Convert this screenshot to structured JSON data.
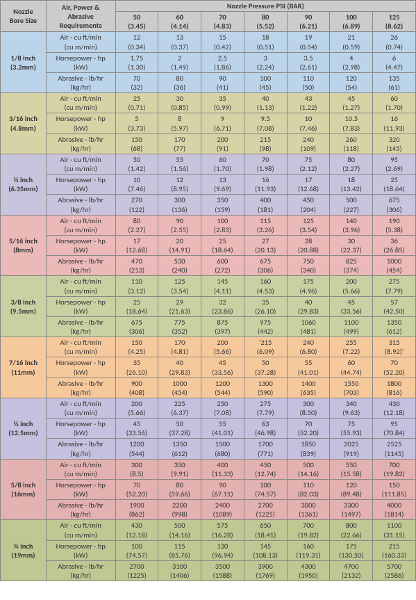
{
  "header": {
    "bore_size": "Nozzle\nBore Size",
    "requirements": "Air, Power &\nAbrasive\nRequirements",
    "pressure_title": "Nozzle Pressure PSI (BAR)",
    "pressures": [
      {
        "psi": "50",
        "bar": "(3.45)"
      },
      {
        "psi": "60",
        "bar": "(4.14)"
      },
      {
        "psi": "70",
        "bar": "(4.83)"
      },
      {
        "psi": "80",
        "bar": "(5.52)"
      },
      {
        "psi": "90",
        "bar": "(6.21)"
      },
      {
        "psi": "100",
        "bar": "(6.89)"
      },
      {
        "psi": "125",
        "bar": "(8.62)"
      }
    ]
  },
  "req_labels": {
    "air": "Air - cu ft/min\n(cu m/min)",
    "hp": "Horsepower - hp\n(kW)",
    "abr": "Abrasive - lb/hr\n(kg/hr)"
  },
  "groups": [
    {
      "bore": "1/8 inch\n(3.2mm)",
      "color": "#bcd4ea",
      "rows": {
        "air": [
          [
            "12",
            "(0.34)"
          ],
          [
            "13",
            "(0.37)"
          ],
          [
            "15",
            "(0.42)"
          ],
          [
            "18",
            "(0.51)"
          ],
          [
            "19",
            "(0.54)"
          ],
          [
            "21",
            "(0.59)"
          ],
          [
            "26",
            "(0.74)"
          ]
        ],
        "hp": [
          [
            "1.75",
            "(1.30)"
          ],
          [
            "2",
            "(1.49)"
          ],
          [
            "2.5",
            "(1.86)"
          ],
          [
            "3",
            "(2.24)"
          ],
          [
            "3.5",
            "(2.61)"
          ],
          [
            "4",
            "(2.98)"
          ],
          [
            "6",
            "(4.47)"
          ]
        ],
        "abr": [
          [
            "70",
            "(32)"
          ],
          [
            "80",
            "(36)"
          ],
          [
            "90",
            "(41)"
          ],
          [
            "100",
            "(45)"
          ],
          [
            "110",
            "(50)"
          ],
          [
            "120",
            "(54)"
          ],
          [
            "135",
            "(61)"
          ]
        ]
      }
    },
    {
      "bore": "3/16 inch\n(4.8mm)",
      "color": "#d7d3a6",
      "rows": {
        "air": [
          [
            "25",
            "(0.71)"
          ],
          [
            "30",
            "(0.85)"
          ],
          [
            "35",
            "(0.99)"
          ],
          [
            "40",
            "(1.13)"
          ],
          [
            "43",
            "(1.22)"
          ],
          [
            "45",
            "(1.27)"
          ],
          [
            "60",
            "(1.70)"
          ]
        ],
        "hp": [
          [
            "5",
            "(3.73)"
          ],
          [
            "8",
            "(5.97)"
          ],
          [
            "9",
            "(6.71)"
          ],
          [
            "9.5",
            "(7.08)"
          ],
          [
            "10",
            "(7.46)"
          ],
          [
            "10.5",
            "(7.83)"
          ],
          [
            "16",
            "(11.93)"
          ]
        ],
        "abr": [
          [
            "150",
            "(68)"
          ],
          [
            "170",
            "(77)"
          ],
          [
            "200",
            "(91)"
          ],
          [
            "215",
            "(98)"
          ],
          [
            "240",
            "(109)"
          ],
          [
            "260",
            "(118)"
          ],
          [
            "320",
            "(145)"
          ]
        ]
      }
    },
    {
      "bore": "¼ inch\n(6.35mm)",
      "color": "#c9c4dd",
      "rows": {
        "air": [
          [
            "50",
            "(1.42)"
          ],
          [
            "55",
            "(1.56)"
          ],
          [
            "60",
            "(1.70)"
          ],
          [
            "70",
            "(1.98)"
          ],
          [
            "75",
            "(2.12)"
          ],
          [
            "80",
            "(2.27)"
          ],
          [
            "95",
            "(2.69)"
          ]
        ],
        "hp": [
          [
            "10",
            "(7.46)"
          ],
          [
            "12",
            "(8.95)"
          ],
          [
            "13",
            "(9.69)"
          ],
          [
            "16",
            "(11.93)"
          ],
          [
            "17",
            "(12.68)"
          ],
          [
            "18",
            "(13.42)"
          ],
          [
            "25",
            "(18.64)"
          ]
        ],
        "abr": [
          [
            "270",
            "(122)"
          ],
          [
            "300",
            "(136)"
          ],
          [
            "350",
            "(159)"
          ],
          [
            "400",
            "(181)"
          ],
          [
            "450",
            "(204)"
          ],
          [
            "500",
            "(227)"
          ],
          [
            "675",
            "(306)"
          ]
        ]
      }
    },
    {
      "bore": "5/16 inch\n(8mm)",
      "color": "#eab9b8",
      "rows": {
        "air": [
          [
            "80",
            "(2.27)"
          ],
          [
            "90",
            "(2.55)"
          ],
          [
            "100",
            "(2.83)"
          ],
          [
            "115",
            "(3.26)"
          ],
          [
            "125",
            "(3.54)"
          ],
          [
            "140",
            "(3.96)"
          ],
          [
            "190",
            "(5.38)"
          ]
        ],
        "hp": [
          [
            "17",
            "(12.68)"
          ],
          [
            "20",
            "(14.91)"
          ],
          [
            "25",
            "(18.64)"
          ],
          [
            "27",
            "(20.13)"
          ],
          [
            "28",
            "(20.88)"
          ],
          [
            "30",
            "(22.37)"
          ],
          [
            "36",
            "(26.85)"
          ]
        ],
        "abr": [
          [
            "470",
            "(213)"
          ],
          [
            "530",
            "(240)"
          ],
          [
            "600",
            "(272)"
          ],
          [
            "675",
            "(306)"
          ],
          [
            "750",
            "(340)"
          ],
          [
            "825",
            "(374)"
          ],
          [
            "1000",
            "(454)"
          ]
        ]
      }
    },
    {
      "bore": "3/8 inch\n(9.5mm)",
      "color": "#c9d1a3",
      "rows": {
        "air": [
          [
            "110",
            "(3.12)"
          ],
          [
            "125",
            "(3.54)"
          ],
          [
            "145",
            "(4.11)"
          ],
          [
            "160",
            "(4.53)"
          ],
          [
            "175",
            "(4.96)"
          ],
          [
            "200",
            "(5.66)"
          ],
          [
            "275",
            "(7.79)"
          ]
        ],
        "hp": [
          [
            "25",
            "(18.64)"
          ],
          [
            "29",
            "(21.63)"
          ],
          [
            "32",
            "(23.86)"
          ],
          [
            "35",
            "(26.10)"
          ],
          [
            "40",
            "(29.83)"
          ],
          [
            "45",
            "(33.56)"
          ],
          [
            "57",
            "(42.50)"
          ]
        ],
        "abr": [
          [
            "675",
            "(306)"
          ],
          [
            "775",
            "(352)"
          ],
          [
            "875",
            "(397)"
          ],
          [
            "975",
            "(442)"
          ],
          [
            "1060",
            "(481)"
          ],
          [
            "1100",
            "(499)"
          ],
          [
            "1350",
            "(612)"
          ]
        ]
      }
    },
    {
      "bore": "7/16 inch\n(11mm)",
      "color": "#f6c99c",
      "rows": {
        "air": [
          [
            "150",
            "(4.25)"
          ],
          [
            "170",
            "(4.81)"
          ],
          [
            "200",
            "(5.66)"
          ],
          [
            "'215",
            "(6.09)"
          ],
          [
            "240",
            "(6.80)"
          ],
          [
            "255",
            "(7.22)"
          ],
          [
            "315",
            "(8.92)'"
          ]
        ],
        "hp": [
          [
            "35",
            "(26.10)"
          ],
          [
            "40",
            "(29.83)"
          ],
          [
            "45",
            "(33.56)"
          ],
          [
            "50",
            "(37.28)"
          ],
          [
            "55",
            "(41.01)"
          ],
          [
            "60",
            "(44.74)"
          ],
          [
            "70",
            "(52.20)"
          ]
        ],
        "abr": [
          [
            "900",
            "(408)"
          ],
          [
            "1000",
            "(454)"
          ],
          [
            "1200",
            "(544)"
          ],
          [
            "1300",
            "(590)"
          ],
          [
            "1400",
            "(635)"
          ],
          [
            "1550",
            "(703)"
          ],
          [
            "1800",
            "(816)"
          ]
        ]
      }
    },
    {
      "bore": "½ inch\n(12.5mm)",
      "color": "#c4c0dd",
      "rows": {
        "air": [
          [
            "200",
            "(5.66)"
          ],
          [
            "225",
            "(6.37)"
          ],
          [
            "250",
            "(7.08)"
          ],
          [
            "275",
            "(7.79)"
          ],
          [
            "300",
            "(8.50)"
          ],
          [
            "340",
            "(9.63)"
          ],
          [
            "430",
            "(12.18)"
          ]
        ],
        "hp": [
          [
            "45",
            "(33.56)"
          ],
          [
            "50",
            "(37.28)"
          ],
          [
            "55",
            "(41.01)"
          ],
          [
            "63",
            "(46.98)"
          ],
          [
            "70",
            "(52.20)"
          ],
          [
            "75",
            "(55.93)"
          ],
          [
            "95",
            "(70.84)"
          ]
        ],
        "abr": [
          [
            "1200",
            "(544)"
          ],
          [
            "1350",
            "(612)"
          ],
          [
            "1500",
            "(680)"
          ],
          [
            "1700",
            "(771)"
          ],
          [
            "1850",
            "(839)"
          ],
          [
            "2025",
            "(919)"
          ],
          [
            "2525",
            "(1145)"
          ]
        ]
      }
    },
    {
      "bore": "5/8 inch\n(16mm)",
      "color": "#e3b1af",
      "rows": {
        "air": [
          [
            "300",
            "(8.5)"
          ],
          [
            "350",
            "(9.91)"
          ],
          [
            "400",
            "(11.33)"
          ],
          [
            "450",
            "(12.74)"
          ],
          [
            "500",
            "(14.16)"
          ],
          [
            "550",
            "(15.58)"
          ],
          [
            "700",
            "(19.82)"
          ]
        ],
        "hp": [
          [
            "70",
            "(52.20)"
          ],
          [
            "80",
            "(59.66)"
          ],
          [
            "90",
            "(67.11)"
          ],
          [
            "100",
            "(74.57)"
          ],
          [
            "110",
            "(82.03)"
          ],
          [
            "120",
            "(89.48)"
          ],
          [
            "150",
            "(111.85)"
          ]
        ],
        "abr": [
          [
            "1900",
            "(862)"
          ],
          [
            "2200",
            "(998)"
          ],
          [
            "2400",
            "(1089)"
          ],
          [
            "2700",
            "(1225)"
          ],
          [
            "3000",
            "(1361)"
          ],
          [
            "3300",
            "(1497)"
          ],
          [
            "4000",
            "(1814)"
          ]
        ]
      }
    },
    {
      "bore": "¾ inch\n(19mm)",
      "color": "#bfc893",
      "rows": {
        "air": [
          [
            "430",
            "(12.18)"
          ],
          [
            "500",
            "(14.16)"
          ],
          [
            "575",
            "(16.28)"
          ],
          [
            "650",
            "(18.41)"
          ],
          [
            "700",
            "(19.82)"
          ],
          [
            "800",
            "(22.66)"
          ],
          [
            "1100",
            "(31.15)"
          ]
        ],
        "hp": [
          [
            "100",
            "(74.57)"
          ],
          [
            "115",
            "(85.76)"
          ],
          [
            "130",
            "(96.94)"
          ],
          [
            "145",
            "(108.13)"
          ],
          [
            "160",
            "(119.31)"
          ],
          [
            "175",
            "(130.50)"
          ],
          [
            "215",
            "(160.33)"
          ]
        ],
        "abr": [
          [
            "2700",
            "(1225)"
          ],
          [
            "3100",
            "(1406)"
          ],
          [
            "3500",
            "(1588)"
          ],
          [
            "3900",
            "(1769)"
          ],
          [
            "4300",
            "(1950)"
          ],
          [
            "4700",
            "(2132)"
          ],
          [
            "5700",
            "(2586)"
          ]
        ]
      }
    }
  ]
}
